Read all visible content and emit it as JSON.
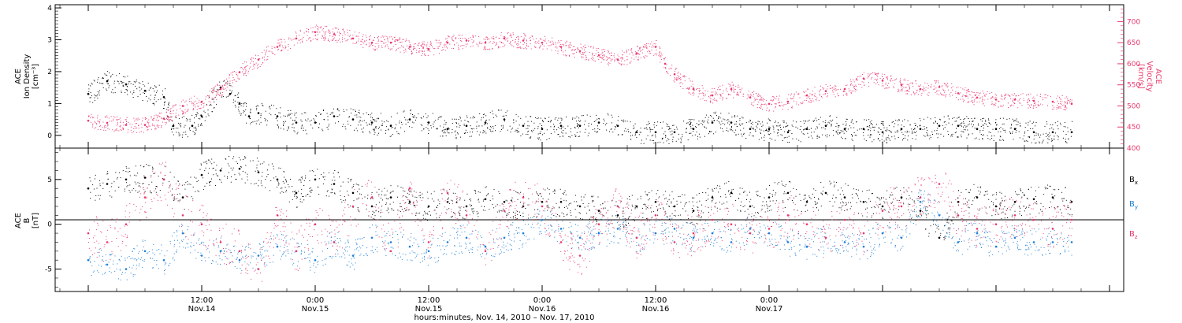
{
  "chart_data": [
    {
      "panel": "top",
      "type": "scatter",
      "ylabel_left": [
        "ACE",
        "Ion Density",
        "[cm⁻³]"
      ],
      "ylabel_right": [
        "ACE",
        "Velocity",
        "[km/s]"
      ],
      "ylim_left": [
        -0.4,
        4.1
      ],
      "ylim_right": [
        400,
        740
      ],
      "yticks_left": [
        "0",
        "1",
        "2",
        "3",
        "4"
      ],
      "yticks_right": [
        "400",
        "450",
        "500",
        "550",
        "600",
        "650",
        "700"
      ],
      "series": [
        {
          "name": "",
          "axis": "left",
          "color": "#000000",
          "x_hours": [
            0,
            2,
            4,
            6,
            8,
            9,
            11,
            12,
            14,
            15,
            16,
            17,
            18,
            20,
            22,
            24,
            26,
            28,
            30,
            32,
            34,
            36,
            38,
            40,
            42,
            44,
            46,
            48,
            50,
            52,
            54,
            56,
            58,
            60,
            62,
            64,
            66,
            68,
            70,
            72,
            74,
            76,
            78,
            80,
            82,
            84,
            86,
            88,
            90,
            92,
            94,
            96,
            98,
            100,
            102,
            104
          ],
          "y": [
            1.3,
            1.7,
            1.6,
            1.4,
            1.2,
            0.3,
            0.3,
            0.6,
            1.5,
            1.3,
            1.0,
            0.6,
            0.7,
            0.6,
            0.4,
            0.4,
            0.6,
            0.5,
            0.4,
            0.3,
            0.5,
            0.4,
            0.2,
            0.3,
            0.4,
            0.5,
            0.3,
            0.2,
            0.3,
            0.3,
            0.4,
            0.3,
            0.1,
            0.1,
            0.1,
            0.2,
            0.4,
            0.4,
            0.2,
            0.2,
            0.1,
            0.2,
            0.3,
            0.2,
            0.2,
            0.1,
            0.2,
            0.2,
            0.3,
            0.3,
            0.2,
            0.2,
            0.2,
            0.1,
            0.1,
            0.1
          ]
        },
        {
          "name": "",
          "axis": "right",
          "color": "#e8396b",
          "x_hours": [
            0,
            2,
            4,
            6,
            8,
            10,
            12,
            14,
            16,
            18,
            20,
            22,
            24,
            26,
            28,
            30,
            32,
            34,
            36,
            38,
            40,
            42,
            44,
            46,
            48,
            50,
            52,
            54,
            56,
            58,
            60,
            61,
            62,
            64,
            66,
            68,
            70,
            72,
            74,
            76,
            78,
            80,
            82,
            84,
            86,
            88,
            90,
            92,
            94,
            96,
            98,
            100,
            102,
            104
          ],
          "y": [
            465,
            460,
            455,
            455,
            470,
            500,
            510,
            540,
            580,
            610,
            640,
            660,
            675,
            670,
            660,
            650,
            650,
            640,
            635,
            650,
            655,
            650,
            660,
            655,
            650,
            640,
            630,
            620,
            610,
            625,
            640,
            600,
            575,
            540,
            525,
            540,
            520,
            505,
            510,
            525,
            535,
            540,
            565,
            560,
            550,
            540,
            545,
            530,
            520,
            515,
            515,
            512,
            510,
            505
          ]
        }
      ]
    },
    {
      "panel": "bottom",
      "type": "scatter",
      "ylabel_left": [
        "ACE",
        "B",
        "[nT]"
      ],
      "ylim": [
        -7.5,
        8.5
      ],
      "yticks": [
        "-5",
        "0",
        "5"
      ],
      "zero_line": true,
      "legend_placement": "right",
      "series": [
        {
          "name": "Bx",
          "color": "#000000",
          "x_hours": [
            0,
            2,
            4,
            6,
            8,
            10,
            12,
            14,
            16,
            18,
            20,
            22,
            24,
            26,
            28,
            30,
            32,
            34,
            36,
            38,
            40,
            42,
            44,
            46,
            48,
            50,
            52,
            54,
            56,
            58,
            60,
            62,
            64,
            66,
            68,
            70,
            72,
            74,
            76,
            78,
            80,
            82,
            84,
            86,
            88,
            90,
            92,
            94,
            96,
            98,
            100,
            102,
            104
          ],
          "y": [
            4.0,
            4.5,
            5.0,
            5.2,
            5.0,
            3.0,
            5.5,
            6.0,
            6.2,
            5.8,
            5.0,
            3.5,
            5.0,
            4.5,
            3.5,
            2.0,
            3.0,
            2.5,
            2.0,
            2.5,
            2.0,
            2.8,
            2.5,
            2.0,
            2.5,
            2.5,
            2.0,
            1.5,
            1.0,
            2.0,
            2.5,
            2.0,
            1.5,
            3.0,
            3.5,
            2.0,
            3.0,
            3.5,
            2.5,
            3.5,
            3.0,
            2.5,
            2.0,
            3.0,
            1.5,
            -1.5,
            2.5,
            3.0,
            2.0,
            2.5,
            2.8,
            3.0,
            2.5
          ]
        },
        {
          "name": "By",
          "color": "#1f7fd6",
          "x_hours": [
            0,
            2,
            4,
            6,
            8,
            10,
            12,
            14,
            16,
            18,
            20,
            22,
            24,
            26,
            28,
            30,
            32,
            34,
            36,
            38,
            40,
            42,
            44,
            46,
            48,
            50,
            52,
            54,
            56,
            58,
            60,
            62,
            64,
            66,
            68,
            70,
            72,
            74,
            76,
            78,
            80,
            82,
            84,
            86,
            88,
            90,
            92,
            94,
            96,
            98,
            100,
            102,
            104
          ],
          "y": [
            -4.0,
            -4.5,
            -5.0,
            -3.0,
            -4.0,
            -1.0,
            -3.5,
            -3.0,
            -4.0,
            -3.5,
            -2.5,
            -3.0,
            -4.0,
            -2.0,
            -3.5,
            -1.5,
            -2.0,
            -2.5,
            -3.0,
            -2.0,
            -1.5,
            -2.5,
            -1.5,
            -1.0,
            0.5,
            -0.5,
            -1.5,
            -1.0,
            -0.5,
            -1.5,
            -1.0,
            -0.5,
            -1.5,
            -1.0,
            -2.0,
            -0.5,
            -1.0,
            -2.0,
            -2.5,
            -1.5,
            -2.0,
            -2.5,
            -1.0,
            -1.5,
            2.5,
            1.0,
            -2.0,
            -1.0,
            -2.5,
            -1.5,
            -2.0,
            -2.0,
            -2.0
          ]
        },
        {
          "name": "Bz",
          "color": "#e8396b",
          "x_hours": [
            0,
            2,
            4,
            6,
            8,
            10,
            12,
            14,
            16,
            18,
            20,
            22,
            24,
            26,
            28,
            30,
            32,
            34,
            36,
            38,
            40,
            42,
            44,
            46,
            48,
            50,
            52,
            54,
            56,
            58,
            60,
            62,
            64,
            66,
            68,
            70,
            72,
            74,
            76,
            78,
            80,
            82,
            84,
            86,
            88,
            90,
            92,
            94,
            96,
            98,
            100,
            102,
            104
          ],
          "y": [
            -1.0,
            -2.0,
            0.0,
            3.0,
            5.0,
            1.0,
            0.0,
            -2.0,
            -3.0,
            -5.0,
            1.0,
            -3.0,
            0.0,
            -2.0,
            2.0,
            3.0,
            -3.0,
            4.0,
            -2.0,
            3.5,
            1.0,
            -3.0,
            1.5,
            3.0,
            2.0,
            -2.0,
            -3.5,
            0.0,
            2.0,
            -1.5,
            1.0,
            -2.0,
            -1.0,
            0.5,
            0.0,
            -1.0,
            -0.5,
            1.0,
            0.0,
            -1.5,
            0.5,
            -1.0,
            1.5,
            2.0,
            3.0,
            4.5,
            1.0,
            -0.5,
            0.0,
            1.0,
            0.5,
            -0.5,
            0.5
          ]
        }
      ]
    }
  ],
  "x_axis": {
    "xlim_hours": [
      -3.5,
      109.5
    ],
    "major_ticks": [
      {
        "hour": 12,
        "time": "12:00",
        "date": "Nov.14"
      },
      {
        "hour": 24,
        "time": "0:00",
        "date": "Nov.15"
      },
      {
        "hour": 36,
        "time": "12:00",
        "date": "Nov.15"
      },
      {
        "hour": 48,
        "time": "0:00",
        "date": "Nov.16"
      },
      {
        "hour": 60,
        "time": "12:00",
        "date": "Nov.16"
      },
      {
        "hour": 72,
        "time": "0:00",
        "date": "Nov.17"
      }
    ],
    "xlabel": "hours:minutes, Nov. 14, 2010 – Nov. 17, 2010"
  },
  "legend": {
    "bx": "B",
    "bx_sub": "x",
    "by": "B",
    "by_sub": "y",
    "bz": "B",
    "bz_sub": "z"
  }
}
